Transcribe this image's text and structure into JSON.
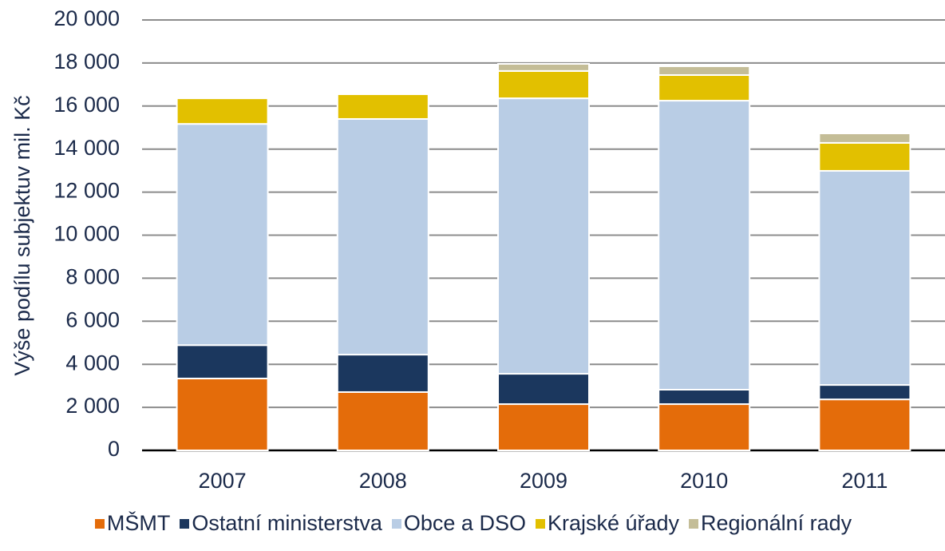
{
  "chart_data": {
    "type": "stacked-bar",
    "ylabel": "Výše podílu subjektuv mil. Kč",
    "categories": [
      "2007",
      "2008",
      "2009",
      "2010",
      "2011"
    ],
    "series": [
      {
        "name": "MŠMT",
        "color": "#e46c0a",
        "values": [
          3340,
          2710,
          2150,
          2150,
          2370
        ]
      },
      {
        "name": "Ostatní ministerstva",
        "color": "#1b375e",
        "values": [
          1550,
          1740,
          1410,
          670,
          670
        ]
      },
      {
        "name": "Obce a DSO",
        "color": "#b9cde5",
        "values": [
          10280,
          10950,
          12800,
          13430,
          9950
        ]
      },
      {
        "name": "Krajské  úřady",
        "color": "#e2c000",
        "values": [
          1190,
          1150,
          1270,
          1190,
          1300
        ]
      },
      {
        "name": "Regionální rady",
        "color": "#c4bd97",
        "values": [
          0,
          0,
          330,
          410,
          440
        ]
      }
    ],
    "ylim": [
      0,
      20000
    ],
    "yticks": [
      0,
      {
        "value": 2000,
        "label": "2 000"
      },
      {
        "value": 4000,
        "label": "4 000"
      },
      {
        "value": 6000,
        "label": "6 000"
      },
      {
        "value": 8000,
        "label": "8 000"
      },
      {
        "value": 10000,
        "label": "10 000"
      },
      {
        "value": 12000,
        "label": "12 000"
      },
      {
        "value": 14000,
        "label": "14 000"
      },
      {
        "value": 16000,
        "label": "16 000"
      },
      {
        "value": 18000,
        "label": "18 000"
      },
      {
        "value": 20000,
        "label": "20 000"
      }
    ],
    "grid": true,
    "legend": "bottom"
  }
}
